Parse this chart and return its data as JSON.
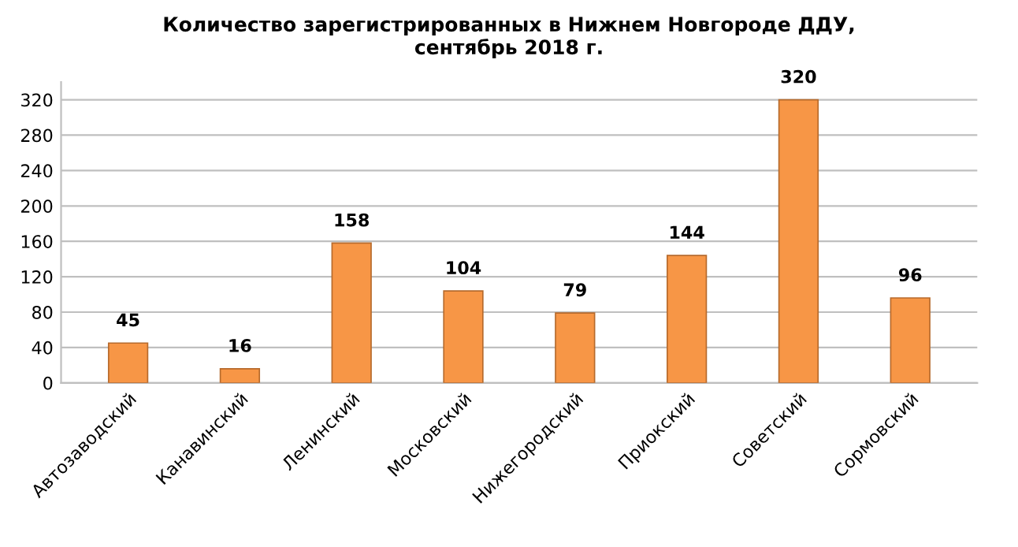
{
  "chart_data": {
    "type": "bar",
    "title": "Количество зарегистрированных в Нижнем Новгороде ДДУ,\nсентябрь 2018 г.",
    "categories": [
      "Автозаводский",
      "Канавинский",
      "Ленинский",
      "Московский",
      "Нижегородский",
      "Приокский",
      "Советский",
      "Сормовский"
    ],
    "values": [
      45,
      16,
      158,
      104,
      79,
      144,
      320,
      96
    ],
    "color": "#f79646",
    "ylim": [
      0,
      340
    ],
    "yticks": [
      0,
      40,
      80,
      120,
      160,
      200,
      240,
      280,
      320
    ],
    "grid": "y",
    "data_labels": true
  }
}
